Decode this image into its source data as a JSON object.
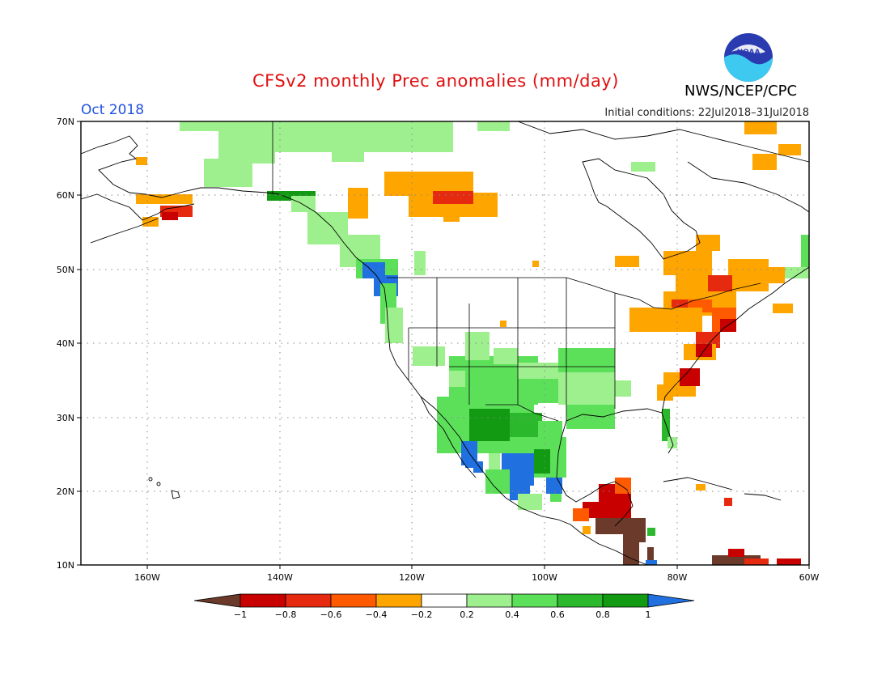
{
  "title": "CFSv2 monthly Prec anomalies (mm/day)",
  "month": "Oct 2018",
  "organization": "NWS/NCEP/CPC",
  "logo_text": "NOAA",
  "initial_conditions": "Initial conditions: 22Jul2018–31Jul2018",
  "map": {
    "lon_range": [
      -170,
      -60
    ],
    "lat_range": [
      10,
      70
    ],
    "lat_labels": [
      "70N",
      "60N",
      "50N",
      "40N",
      "30N",
      "20N",
      "10N"
    ],
    "lon_labels": [
      "160W",
      "140W",
      "120W",
      "100W",
      "80W",
      "60W"
    ],
    "grid": true
  },
  "colorbar": {
    "labels": [
      "−1",
      "−0.8",
      "−0.6",
      "−0.4",
      "−0.2",
      "0.2",
      "0.4",
      "0.6",
      "0.8",
      "1"
    ],
    "colors": [
      "#6b3a2a",
      "#c80000",
      "#e62a10",
      "#ff5a00",
      "#ffa500",
      "#ffffff",
      "#9ef08e",
      "#5ce05a",
      "#2cb82c",
      "#129a12",
      "#2070e0"
    ]
  },
  "anomaly_colors": {
    "strong_dry": "#6b3a2a",
    "dry_08": "#c80000",
    "dry_06": "#e62a10",
    "dry_04": "#ff5a00",
    "dry_02": "#ffa500",
    "wet_02": "#9ef08e",
    "wet_04": "#5ce05a",
    "wet_06": "#2cb82c",
    "wet_08": "#129a12",
    "strong_wet": "#2070e0"
  }
}
